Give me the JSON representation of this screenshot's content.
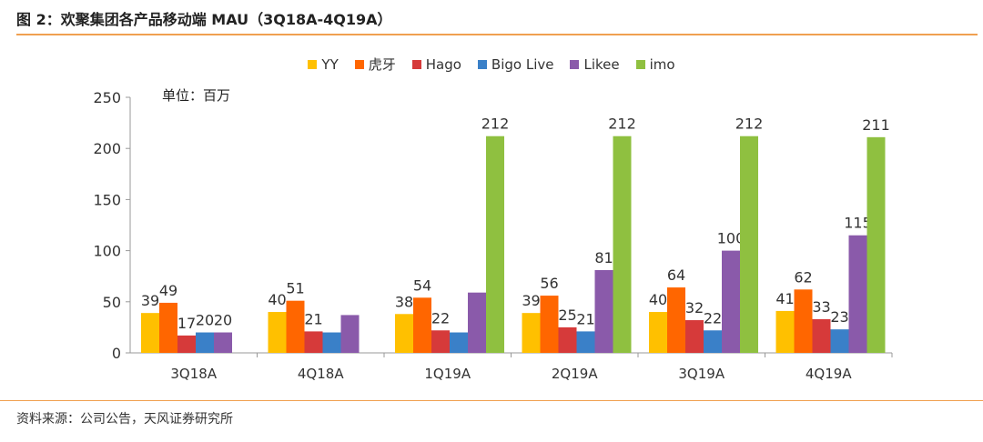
{
  "title": "图 2：欢聚集团各产品移动端 MAU（3Q18A-4Q19A）",
  "source": "资料来源：公司公告，天风证券研究所",
  "unit_label": "单位：百万",
  "chart_data": {
    "type": "bar",
    "categories": [
      "3Q18A",
      "4Q18A",
      "1Q19A",
      "2Q19A",
      "3Q19A",
      "4Q19A"
    ],
    "ylim": [
      0,
      250
    ],
    "yticks": [
      0,
      50,
      100,
      150,
      200,
      250
    ],
    "grid": false,
    "legend_position": "top",
    "series": [
      {
        "name": "YY",
        "color": "#ffc000",
        "values": [
          39,
          40,
          38,
          39,
          40,
          41
        ],
        "labels": [
          "39",
          "40",
          "38",
          "39",
          "40",
          "41"
        ]
      },
      {
        "name": "虎牙",
        "color": "#ff6600",
        "values": [
          49,
          51,
          54,
          56,
          64,
          62
        ],
        "labels": [
          "49",
          "51",
          "54",
          "56",
          "64",
          "62"
        ]
      },
      {
        "name": "Hago",
        "color": "#d63a3a",
        "values": [
          17,
          21,
          22,
          25,
          32,
          33
        ],
        "labels": [
          "17",
          "21",
          "22",
          "25",
          "32",
          "33"
        ]
      },
      {
        "name": "Bigo Live",
        "color": "#3a80c8",
        "values": [
          20,
          20,
          20,
          21,
          22,
          23
        ],
        "labels": [
          "20",
          "",
          "",
          "21",
          "22",
          "23"
        ]
      },
      {
        "name": "Likee",
        "color": "#8a5aaa",
        "values": [
          20,
          37,
          59,
          81,
          100,
          115
        ],
        "labels": [
          "20",
          "",
          "",
          "81",
          "100",
          "115"
        ]
      },
      {
        "name": "imo",
        "color": "#8fc040",
        "values": [
          0,
          0,
          212,
          212,
          212,
          211
        ],
        "labels": [
          "",
          "",
          "212",
          "212",
          "212",
          "211"
        ]
      }
    ]
  }
}
